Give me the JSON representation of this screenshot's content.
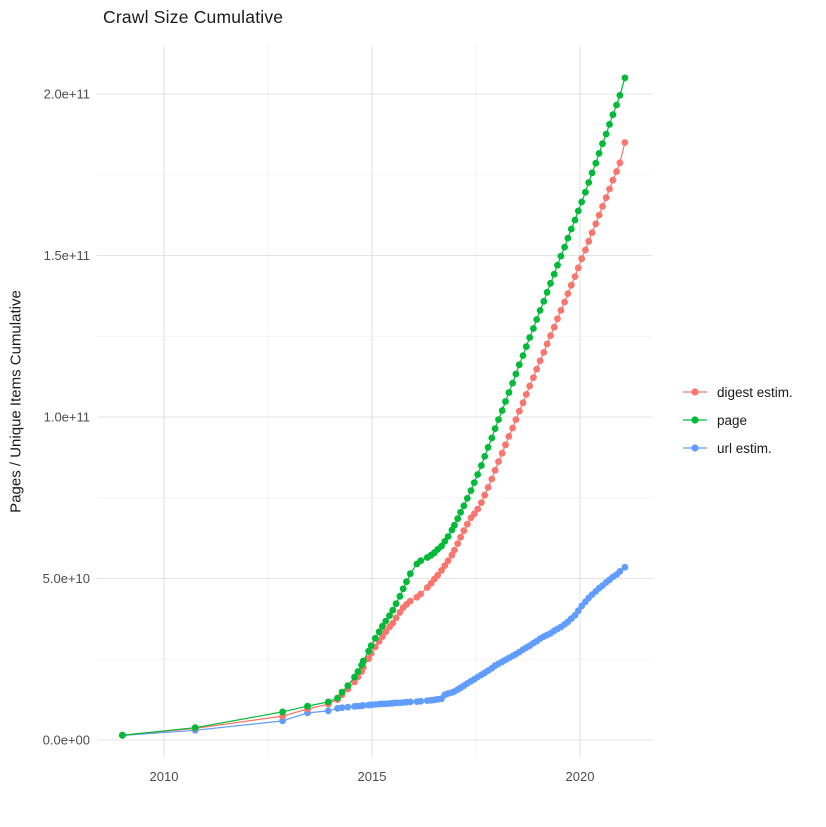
{
  "title": "Crawl Size Cumulative",
  "legend": {
    "position": "right",
    "items": [
      {
        "label": "digest estim.",
        "color": "#F8766D"
      },
      {
        "label": "page",
        "color": "#00BA38"
      },
      {
        "label": "url estim.",
        "color": "#619CFF"
      }
    ]
  },
  "chart_data": {
    "type": "line",
    "title": "Crawl Size Cumulative",
    "xlabel": "",
    "ylabel": "Pages / Unique Items Cumulative",
    "grid": true,
    "legend_position": "right",
    "x_range": [
      2008.4,
      2021.7
    ],
    "y_unit": 10000000000.0,
    "y_range_units": [
      -0.9,
      21.5
    ],
    "x_ticks": {
      "major": [
        2010,
        2015,
        2020
      ],
      "minor": [
        2012.5,
        2017.5
      ]
    },
    "y_ticks": {
      "major": [
        {
          "value": 0,
          "label": "0.0e+00"
        },
        {
          "value": 5,
          "label": "5.0e+10"
        },
        {
          "value": 10,
          "label": "1.0e+11"
        },
        {
          "value": 15,
          "label": "1.5e+11"
        },
        {
          "value": 20,
          "label": "2.0e+11"
        }
      ],
      "minor": [
        2.5,
        7.5,
        12.5,
        17.5
      ]
    },
    "series": [
      {
        "name": "digest estim.",
        "color": "#F8766D",
        "points": [
          [
            2009.0,
            0.15
          ],
          [
            2010.75,
            0.36
          ],
          [
            2012.85,
            0.74
          ],
          [
            2013.45,
            0.96
          ],
          [
            2013.95,
            1.11
          ],
          [
            2014.17,
            1.25
          ],
          [
            2014.28,
            1.4
          ],
          [
            2014.42,
            1.58
          ],
          [
            2014.58,
            1.8
          ],
          [
            2014.66,
            1.95
          ],
          [
            2014.75,
            2.12
          ],
          [
            2014.79,
            2.25
          ],
          [
            2014.92,
            2.52
          ],
          [
            2014.98,
            2.68
          ],
          [
            2015.08,
            2.88
          ],
          [
            2015.17,
            3.05
          ],
          [
            2015.25,
            3.2
          ],
          [
            2015.33,
            3.35
          ],
          [
            2015.42,
            3.5
          ],
          [
            2015.5,
            3.62
          ],
          [
            2015.58,
            3.78
          ],
          [
            2015.67,
            3.95
          ],
          [
            2015.75,
            4.1
          ],
          [
            2015.83,
            4.2
          ],
          [
            2015.92,
            4.3
          ],
          [
            2016.08,
            4.42
          ],
          [
            2016.17,
            4.52
          ],
          [
            2016.33,
            4.72
          ],
          [
            2016.42,
            4.85
          ],
          [
            2016.5,
            4.98
          ],
          [
            2016.58,
            5.1
          ],
          [
            2016.67,
            5.25
          ],
          [
            2016.75,
            5.4
          ],
          [
            2016.83,
            5.55
          ],
          [
            2016.92,
            5.72
          ],
          [
            2016.98,
            5.88
          ],
          [
            2017.06,
            6.08
          ],
          [
            2017.13,
            6.28
          ],
          [
            2017.21,
            6.48
          ],
          [
            2017.29,
            6.68
          ],
          [
            2017.38,
            6.88
          ],
          [
            2017.46,
            7.0
          ],
          [
            2017.54,
            7.15
          ],
          [
            2017.63,
            7.35
          ],
          [
            2017.71,
            7.58
          ],
          [
            2017.79,
            7.82
          ],
          [
            2017.88,
            8.08
          ],
          [
            2017.96,
            8.35
          ],
          [
            2018.04,
            8.62
          ],
          [
            2018.13,
            8.88
          ],
          [
            2018.21,
            9.14
          ],
          [
            2018.29,
            9.4
          ],
          [
            2018.38,
            9.66
          ],
          [
            2018.46,
            9.92
          ],
          [
            2018.54,
            10.18
          ],
          [
            2018.63,
            10.44
          ],
          [
            2018.71,
            10.7
          ],
          [
            2018.79,
            10.96
          ],
          [
            2018.88,
            11.22
          ],
          [
            2018.96,
            11.48
          ],
          [
            2019.04,
            11.74
          ],
          [
            2019.13,
            12.0
          ],
          [
            2019.21,
            12.26
          ],
          [
            2019.29,
            12.52
          ],
          [
            2019.38,
            12.78
          ],
          [
            2019.46,
            13.04
          ],
          [
            2019.54,
            13.3
          ],
          [
            2019.63,
            13.56
          ],
          [
            2019.71,
            13.82
          ],
          [
            2019.79,
            14.08
          ],
          [
            2019.88,
            14.35
          ],
          [
            2019.96,
            14.62
          ],
          [
            2020.04,
            14.9
          ],
          [
            2020.13,
            15.17
          ],
          [
            2020.21,
            15.44
          ],
          [
            2020.29,
            15.71
          ],
          [
            2020.38,
            15.98
          ],
          [
            2020.46,
            16.25
          ],
          [
            2020.54,
            16.52
          ],
          [
            2020.63,
            16.79
          ],
          [
            2020.71,
            17.06
          ],
          [
            2020.79,
            17.33
          ],
          [
            2020.88,
            17.6
          ],
          [
            2020.96,
            17.87
          ],
          [
            2021.08,
            18.5
          ]
        ]
      },
      {
        "name": "page",
        "color": "#00BA38",
        "points": [
          [
            2009.0,
            0.15
          ],
          [
            2010.75,
            0.38
          ],
          [
            2012.85,
            0.87
          ],
          [
            2013.45,
            1.05
          ],
          [
            2013.95,
            1.18
          ],
          [
            2014.17,
            1.3
          ],
          [
            2014.28,
            1.48
          ],
          [
            2014.42,
            1.68
          ],
          [
            2014.58,
            1.95
          ],
          [
            2014.66,
            2.12
          ],
          [
            2014.75,
            2.32
          ],
          [
            2014.79,
            2.45
          ],
          [
            2014.92,
            2.75
          ],
          [
            2014.98,
            2.92
          ],
          [
            2015.08,
            3.15
          ],
          [
            2015.17,
            3.35
          ],
          [
            2015.25,
            3.52
          ],
          [
            2015.33,
            3.68
          ],
          [
            2015.42,
            3.85
          ],
          [
            2015.5,
            4.02
          ],
          [
            2015.58,
            4.22
          ],
          [
            2015.67,
            4.45
          ],
          [
            2015.75,
            4.68
          ],
          [
            2015.83,
            4.9
          ],
          [
            2015.92,
            5.15
          ],
          [
            2016.08,
            5.45
          ],
          [
            2016.17,
            5.55
          ],
          [
            2016.33,
            5.65
          ],
          [
            2016.42,
            5.72
          ],
          [
            2016.5,
            5.8
          ],
          [
            2016.58,
            5.9
          ],
          [
            2016.67,
            6.0
          ],
          [
            2016.75,
            6.15
          ],
          [
            2016.83,
            6.3
          ],
          [
            2016.92,
            6.5
          ],
          [
            2016.98,
            6.65
          ],
          [
            2017.06,
            6.85
          ],
          [
            2017.13,
            7.05
          ],
          [
            2017.21,
            7.25
          ],
          [
            2017.29,
            7.48
          ],
          [
            2017.38,
            7.72
          ],
          [
            2017.46,
            7.97
          ],
          [
            2017.54,
            8.22
          ],
          [
            2017.63,
            8.5
          ],
          [
            2017.71,
            8.78
          ],
          [
            2017.79,
            9.06
          ],
          [
            2017.88,
            9.35
          ],
          [
            2017.96,
            9.64
          ],
          [
            2018.04,
            9.92
          ],
          [
            2018.13,
            10.2
          ],
          [
            2018.21,
            10.48
          ],
          [
            2018.29,
            10.76
          ],
          [
            2018.38,
            11.05
          ],
          [
            2018.46,
            11.33
          ],
          [
            2018.54,
            11.62
          ],
          [
            2018.63,
            11.9
          ],
          [
            2018.71,
            12.18
          ],
          [
            2018.79,
            12.46
          ],
          [
            2018.88,
            12.74
          ],
          [
            2018.96,
            13.02
          ],
          [
            2019.04,
            13.3
          ],
          [
            2019.13,
            13.58
          ],
          [
            2019.21,
            13.86
          ],
          [
            2019.29,
            14.14
          ],
          [
            2019.38,
            14.42
          ],
          [
            2019.46,
            14.7
          ],
          [
            2019.54,
            14.98
          ],
          [
            2019.63,
            15.26
          ],
          [
            2019.71,
            15.54
          ],
          [
            2019.79,
            15.82
          ],
          [
            2019.88,
            16.1
          ],
          [
            2019.96,
            16.38
          ],
          [
            2020.04,
            16.66
          ],
          [
            2020.13,
            16.96
          ],
          [
            2020.21,
            17.26
          ],
          [
            2020.29,
            17.56
          ],
          [
            2020.38,
            17.86
          ],
          [
            2020.46,
            18.16
          ],
          [
            2020.54,
            18.46
          ],
          [
            2020.63,
            18.76
          ],
          [
            2020.71,
            19.06
          ],
          [
            2020.79,
            19.36
          ],
          [
            2020.88,
            19.66
          ],
          [
            2020.96,
            19.96
          ],
          [
            2021.08,
            20.5
          ]
        ]
      },
      {
        "name": "url estim.",
        "color": "#619CFF",
        "points": [
          [
            2009.0,
            0.14
          ],
          [
            2010.75,
            0.3
          ],
          [
            2012.85,
            0.59
          ],
          [
            2013.45,
            0.84
          ],
          [
            2013.95,
            0.9
          ],
          [
            2014.17,
            0.98
          ],
          [
            2014.28,
            1.0
          ],
          [
            2014.42,
            1.02
          ],
          [
            2014.58,
            1.04
          ],
          [
            2014.66,
            1.05
          ],
          [
            2014.75,
            1.06
          ],
          [
            2014.79,
            1.07
          ],
          [
            2014.92,
            1.08
          ],
          [
            2014.98,
            1.09
          ],
          [
            2015.08,
            1.1
          ],
          [
            2015.17,
            1.11
          ],
          [
            2015.25,
            1.12
          ],
          [
            2015.33,
            1.12
          ],
          [
            2015.42,
            1.13
          ],
          [
            2015.5,
            1.14
          ],
          [
            2015.58,
            1.15
          ],
          [
            2015.67,
            1.15
          ],
          [
            2015.75,
            1.16
          ],
          [
            2015.83,
            1.17
          ],
          [
            2015.92,
            1.18
          ],
          [
            2016.08,
            1.19
          ],
          [
            2016.17,
            1.2
          ],
          [
            2016.33,
            1.22
          ],
          [
            2016.42,
            1.23
          ],
          [
            2016.5,
            1.24
          ],
          [
            2016.58,
            1.26
          ],
          [
            2016.67,
            1.28
          ],
          [
            2016.75,
            1.4
          ],
          [
            2016.83,
            1.44
          ],
          [
            2016.92,
            1.47
          ],
          [
            2016.98,
            1.5
          ],
          [
            2017.06,
            1.56
          ],
          [
            2017.13,
            1.62
          ],
          [
            2017.21,
            1.68
          ],
          [
            2017.29,
            1.75
          ],
          [
            2017.38,
            1.82
          ],
          [
            2017.46,
            1.88
          ],
          [
            2017.54,
            1.95
          ],
          [
            2017.63,
            2.02
          ],
          [
            2017.71,
            2.08
          ],
          [
            2017.79,
            2.15
          ],
          [
            2017.88,
            2.22
          ],
          [
            2017.96,
            2.3
          ],
          [
            2018.04,
            2.36
          ],
          [
            2018.13,
            2.42
          ],
          [
            2018.21,
            2.48
          ],
          [
            2018.29,
            2.54
          ],
          [
            2018.38,
            2.6
          ],
          [
            2018.46,
            2.66
          ],
          [
            2018.54,
            2.72
          ],
          [
            2018.63,
            2.8
          ],
          [
            2018.71,
            2.86
          ],
          [
            2018.79,
            2.92
          ],
          [
            2018.88,
            3.0
          ],
          [
            2018.96,
            3.06
          ],
          [
            2019.04,
            3.14
          ],
          [
            2019.13,
            3.2
          ],
          [
            2019.21,
            3.25
          ],
          [
            2019.29,
            3.3
          ],
          [
            2019.38,
            3.38
          ],
          [
            2019.46,
            3.44
          ],
          [
            2019.54,
            3.5
          ],
          [
            2019.63,
            3.58
          ],
          [
            2019.71,
            3.66
          ],
          [
            2019.79,
            3.76
          ],
          [
            2019.88,
            3.86
          ],
          [
            2019.96,
            4.0
          ],
          [
            2020.04,
            4.15
          ],
          [
            2020.13,
            4.28
          ],
          [
            2020.21,
            4.4
          ],
          [
            2020.29,
            4.5
          ],
          [
            2020.38,
            4.6
          ],
          [
            2020.46,
            4.7
          ],
          [
            2020.54,
            4.78
          ],
          [
            2020.63,
            4.88
          ],
          [
            2020.71,
            4.96
          ],
          [
            2020.79,
            5.05
          ],
          [
            2020.88,
            5.12
          ],
          [
            2020.96,
            5.22
          ],
          [
            2021.08,
            5.35
          ]
        ]
      }
    ],
    "draw_order": [
      "url estim.",
      "digest estim.",
      "page"
    ]
  },
  "style": {
    "grid_major_color": "#e4e4e4",
    "grid_minor_color": "#f0f0f0",
    "tick_text_color": "#4d4d4d",
    "text_color": "#1a1a1a",
    "background": "#ffffff"
  }
}
